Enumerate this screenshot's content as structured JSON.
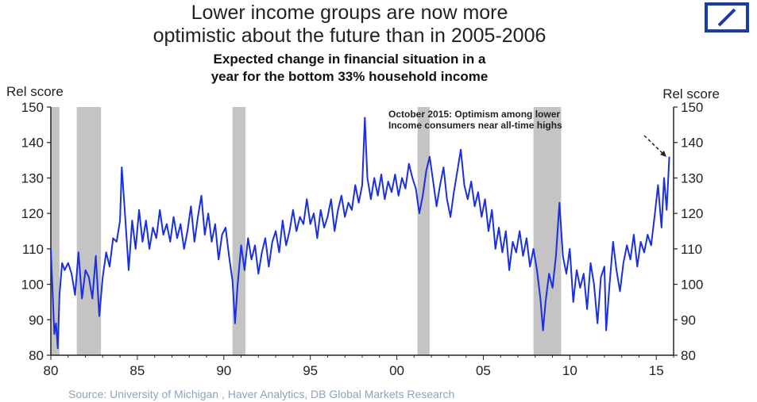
{
  "title_lines": [
    "Lower income groups are now more",
    "optimistic about the future than in 2005-2006"
  ],
  "subtitle_lines": [
    "Expected change in financial situation in a",
    "year for the bottom 33% household income"
  ],
  "source": "Source: University of Michigan , Haver Analytics, DB Global Markets Research",
  "logo": "deutsche-bank-logo",
  "colors": {
    "line": "#1a2fe0",
    "recession": "#c4c4c4",
    "logo": "#1a3aa8",
    "text": "#222222",
    "source": "#8aa4c4"
  },
  "chart_data": {
    "type": "line",
    "ylabel_left": "Rel score",
    "ylabel_right": "Rel score",
    "ylim": [
      80,
      150
    ],
    "yticks": [
      80,
      90,
      100,
      110,
      120,
      130,
      140,
      150
    ],
    "xlim": [
      1980.0,
      2016.0
    ],
    "xticks": [
      {
        "x": 1980,
        "label": "80"
      },
      {
        "x": 1985,
        "label": "85"
      },
      {
        "x": 1990,
        "label": "90"
      },
      {
        "x": 1995,
        "label": "95"
      },
      {
        "x": 2000,
        "label": "00"
      },
      {
        "x": 2005,
        "label": "05"
      },
      {
        "x": 2010,
        "label": "10"
      },
      {
        "x": 2015,
        "label": "15"
      }
    ],
    "recessions": [
      [
        1980.0,
        1980.5
      ],
      [
        1981.5,
        1982.9
      ],
      [
        1990.5,
        1991.25
      ],
      [
        2001.2,
        2001.9
      ],
      [
        2007.9,
        2009.5
      ]
    ],
    "annotation": {
      "lines": [
        "October 2015: Optimism among lower",
        "Income consumers near all-time highs"
      ],
      "x": 2015.75,
      "y": 136
    },
    "series": [
      {
        "points": [
          [
            1980.0,
            110
          ],
          [
            1980.1,
            98
          ],
          [
            1980.2,
            86
          ],
          [
            1980.3,
            89
          ],
          [
            1980.4,
            82
          ],
          [
            1980.5,
            97
          ],
          [
            1980.65,
            106
          ],
          [
            1980.8,
            104
          ],
          [
            1981.0,
            106
          ],
          [
            1981.2,
            103
          ],
          [
            1981.4,
            97
          ],
          [
            1981.6,
            109
          ],
          [
            1981.8,
            96
          ],
          [
            1982.0,
            104
          ],
          [
            1982.2,
            102
          ],
          [
            1982.4,
            96
          ],
          [
            1982.6,
            108
          ],
          [
            1982.8,
            91
          ],
          [
            1983.0,
            102
          ],
          [
            1983.2,
            109
          ],
          [
            1983.4,
            105
          ],
          [
            1983.6,
            113
          ],
          [
            1983.8,
            112
          ],
          [
            1984.0,
            118
          ],
          [
            1984.1,
            133
          ],
          [
            1984.3,
            119
          ],
          [
            1984.5,
            104
          ],
          [
            1984.7,
            118
          ],
          [
            1984.9,
            110
          ],
          [
            1985.1,
            121
          ],
          [
            1985.3,
            112
          ],
          [
            1985.5,
            118
          ],
          [
            1985.7,
            110
          ],
          [
            1985.9,
            116
          ],
          [
            1986.1,
            113
          ],
          [
            1986.3,
            121
          ],
          [
            1986.5,
            114
          ],
          [
            1986.7,
            117
          ],
          [
            1986.9,
            112
          ],
          [
            1987.1,
            119
          ],
          [
            1987.3,
            113
          ],
          [
            1987.5,
            117
          ],
          [
            1987.7,
            110
          ],
          [
            1987.9,
            115
          ],
          [
            1988.1,
            122
          ],
          [
            1988.3,
            112
          ],
          [
            1988.5,
            119
          ],
          [
            1988.7,
            125
          ],
          [
            1988.9,
            114
          ],
          [
            1989.1,
            120
          ],
          [
            1989.3,
            112
          ],
          [
            1989.5,
            117
          ],
          [
            1989.7,
            107
          ],
          [
            1989.9,
            114
          ],
          [
            1990.1,
            116
          ],
          [
            1990.3,
            108
          ],
          [
            1990.5,
            101
          ],
          [
            1990.65,
            89
          ],
          [
            1990.8,
            100
          ],
          [
            1991.0,
            111
          ],
          [
            1991.2,
            104
          ],
          [
            1991.4,
            113
          ],
          [
            1991.6,
            107
          ],
          [
            1991.8,
            111
          ],
          [
            1992.0,
            103
          ],
          [
            1992.2,
            109
          ],
          [
            1992.4,
            113
          ],
          [
            1992.6,
            105
          ],
          [
            1992.8,
            112
          ],
          [
            1993.0,
            115
          ],
          [
            1993.2,
            109
          ],
          [
            1993.4,
            118
          ],
          [
            1993.6,
            111
          ],
          [
            1993.8,
            115
          ],
          [
            1994.0,
            121
          ],
          [
            1994.2,
            115
          ],
          [
            1994.4,
            119
          ],
          [
            1994.6,
            117
          ],
          [
            1994.8,
            124
          ],
          [
            1995.0,
            117
          ],
          [
            1995.2,
            120
          ],
          [
            1995.4,
            113
          ],
          [
            1995.6,
            121
          ],
          [
            1995.8,
            116
          ],
          [
            1996.0,
            119
          ],
          [
            1996.2,
            124
          ],
          [
            1996.4,
            115
          ],
          [
            1996.6,
            121
          ],
          [
            1996.8,
            125
          ],
          [
            1997.0,
            119
          ],
          [
            1997.2,
            123
          ],
          [
            1997.4,
            121
          ],
          [
            1997.6,
            128
          ],
          [
            1997.8,
            123
          ],
          [
            1998.0,
            128
          ],
          [
            1998.15,
            147
          ],
          [
            1998.3,
            130
          ],
          [
            1998.5,
            124
          ],
          [
            1998.7,
            130
          ],
          [
            1998.9,
            125
          ],
          [
            1999.1,
            131
          ],
          [
            1999.3,
            124
          ],
          [
            1999.5,
            129
          ],
          [
            1999.7,
            126
          ],
          [
            1999.9,
            131
          ],
          [
            2000.1,
            125
          ],
          [
            2000.3,
            130
          ],
          [
            2000.5,
            127
          ],
          [
            2000.7,
            134
          ],
          [
            2000.9,
            130
          ],
          [
            2001.1,
            127
          ],
          [
            2001.3,
            120
          ],
          [
            2001.5,
            125
          ],
          [
            2001.7,
            132
          ],
          [
            2001.9,
            136
          ],
          [
            2002.1,
            129
          ],
          [
            2002.3,
            122
          ],
          [
            2002.5,
            128
          ],
          [
            2002.7,
            133
          ],
          [
            2002.9,
            124
          ],
          [
            2003.1,
            119
          ],
          [
            2003.3,
            126
          ],
          [
            2003.5,
            132
          ],
          [
            2003.7,
            138
          ],
          [
            2003.9,
            128
          ],
          [
            2004.1,
            124
          ],
          [
            2004.3,
            129
          ],
          [
            2004.5,
            122
          ],
          [
            2004.7,
            126
          ],
          [
            2004.9,
            119
          ],
          [
            2005.1,
            124
          ],
          [
            2005.3,
            115
          ],
          [
            2005.5,
            121
          ],
          [
            2005.7,
            110
          ],
          [
            2005.9,
            116
          ],
          [
            2006.1,
            109
          ],
          [
            2006.3,
            115
          ],
          [
            2006.5,
            104
          ],
          [
            2006.7,
            112
          ],
          [
            2006.9,
            109
          ],
          [
            2007.1,
            115
          ],
          [
            2007.3,
            108
          ],
          [
            2007.5,
            113
          ],
          [
            2007.7,
            105
          ],
          [
            2007.9,
            110
          ],
          [
            2008.1,
            104
          ],
          [
            2008.3,
            96
          ],
          [
            2008.45,
            87
          ],
          [
            2008.6,
            95
          ],
          [
            2008.8,
            103
          ],
          [
            2009.0,
            99
          ],
          [
            2009.2,
            108
          ],
          [
            2009.4,
            123
          ],
          [
            2009.6,
            108
          ],
          [
            2009.8,
            103
          ],
          [
            2010.0,
            110
          ],
          [
            2010.2,
            95
          ],
          [
            2010.4,
            104
          ],
          [
            2010.6,
            99
          ],
          [
            2010.8,
            103
          ],
          [
            2011.0,
            93
          ],
          [
            2011.2,
            106
          ],
          [
            2011.4,
            100
          ],
          [
            2011.6,
            89
          ],
          [
            2011.8,
            102
          ],
          [
            2012.0,
            105
          ],
          [
            2012.1,
            87
          ],
          [
            2012.3,
            100
          ],
          [
            2012.5,
            112
          ],
          [
            2012.7,
            104
          ],
          [
            2012.9,
            98
          ],
          [
            2013.1,
            106
          ],
          [
            2013.3,
            111
          ],
          [
            2013.5,
            107
          ],
          [
            2013.7,
            114
          ],
          [
            2013.9,
            105
          ],
          [
            2014.1,
            112
          ],
          [
            2014.3,
            109
          ],
          [
            2014.5,
            114
          ],
          [
            2014.7,
            111
          ],
          [
            2014.9,
            119
          ],
          [
            2015.1,
            128
          ],
          [
            2015.3,
            116
          ],
          [
            2015.45,
            130
          ],
          [
            2015.6,
            121
          ],
          [
            2015.75,
            136
          ]
        ]
      }
    ]
  }
}
